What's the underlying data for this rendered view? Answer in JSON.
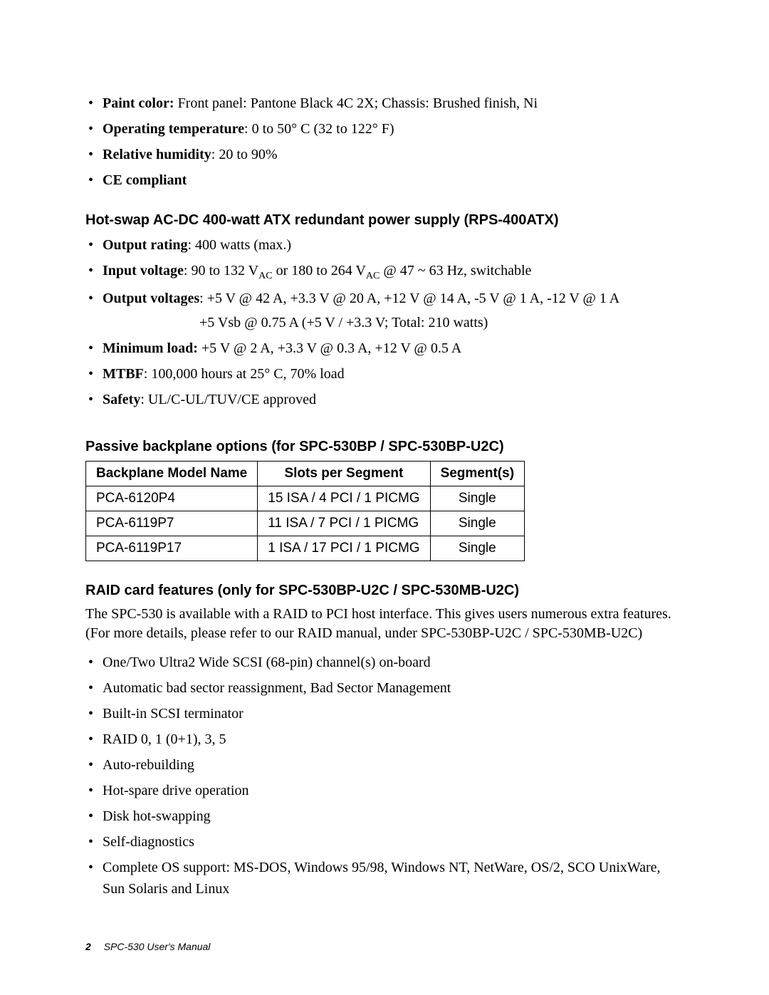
{
  "specs_top": [
    {
      "label": "Paint color:",
      "text": " Front panel: Pantone Black 4C 2X; Chassis: Brushed finish, Ni"
    },
    {
      "label": "Operating temperature",
      "text": ": 0 to 50° C (32 to 122° F)"
    },
    {
      "label": "Relative humidity",
      "text": ": 20 to 90%"
    },
    {
      "label": "CE  compliant",
      "text": ""
    }
  ],
  "psu": {
    "heading": "Hot-swap AC-DC 400-watt ATX redundant power supply (RPS-400ATX)",
    "items": [
      {
        "label": "Output rating",
        "text": ": 400 watts (max.)"
      },
      {
        "label": "Input voltage",
        "html": ": 90 to 132 V<sub>AC</sub> or 180 to 264 V<sub>AC</sub> @ 47 ~ 63 Hz, switchable"
      },
      {
        "label": "Output voltages",
        "text": ": +5 V @ 42 A, +3.3 V @ 20 A, +12 V @ 14 A, -5 V @ 1 A, -12 V @ 1 A"
      },
      {
        "indent": "+5 Vsb @ 0.75 A  (+5 V / +3.3 V; Total: 210 watts)"
      },
      {
        "label": "Minimum load:",
        "text": " +5 V @ 2 A, +3.3 V @ 0.3 A, +12 V @ 0.5 A"
      },
      {
        "label": "MTBF",
        "text": ": 100,000 hours at 25° C, 70% load"
      },
      {
        "label": "Safety",
        "text": ": UL/C-UL/TUV/CE approved"
      }
    ]
  },
  "backplane": {
    "heading": "Passive backplane options (for SPC-530BP / SPC-530BP-U2C)",
    "columns": [
      "Backplane Model Name",
      "Slots per Segment",
      "Segment(s)"
    ],
    "rows": [
      [
        "PCA-6120P4",
        "15 ISA / 4 PCI / 1 PICMG",
        "Single"
      ],
      [
        "PCA-6119P7",
        "11 ISA / 7 PCI / 1 PICMG",
        "Single"
      ],
      [
        "PCA-6119P17",
        "1 ISA / 17 PCI / 1 PICMG",
        "Single"
      ]
    ]
  },
  "raid": {
    "heading": "RAID card features (only for SPC-530BP-U2C / SPC-530MB-U2C)",
    "paragraph": "The SPC-530 is available with a RAID to PCI host interface. This gives users numerous extra features. (For more details, please refer to our RAID manual, under SPC-530BP-U2C / SPC-530MB-U2C)",
    "items": [
      "One/Two Ultra2 Wide SCSI (68-pin) channel(s) on-board",
      "Automatic bad sector reassignment, Bad Sector Management",
      "Built-in SCSI terminator",
      "RAID 0, 1 (0+1), 3, 5",
      "Auto-rebuilding",
      "Hot-spare drive operation",
      "Disk hot-swapping",
      "Self-diagnostics",
      "Complete OS support: MS-DOS, Windows 95/98, Windows NT, NetWare, OS/2, SCO UnixWare, Sun Solaris and Linux"
    ]
  },
  "footer": {
    "page": "2",
    "title": "SPC-530  User's Manual"
  }
}
